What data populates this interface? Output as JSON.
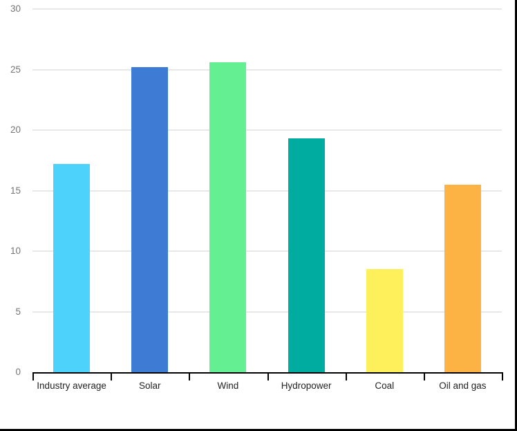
{
  "chart_data": {
    "type": "bar",
    "title": "",
    "categories": [
      "Industry average",
      "Solar",
      "Wind",
      "Hydropower",
      "Coal",
      "Oil and gas"
    ],
    "values": [
      17.2,
      25.2,
      25.6,
      19.3,
      8.5,
      15.5
    ],
    "colors": [
      "#4DD2FC",
      "#3E7BD5",
      "#64EF92",
      "#00ACA0",
      "#FDF05B",
      "#FCB343"
    ],
    "xlabel": "",
    "ylabel": "",
    "ylim": [
      0,
      30
    ],
    "yticks": [
      0,
      5,
      10,
      15,
      20,
      25,
      30
    ],
    "grid": "horizontal",
    "legend": "none",
    "background": "#ffffff",
    "grid_color": "#e8e8e8",
    "axis_color": "#000000",
    "ytick_label_color": "#757575",
    "category_label_color": "#222222"
  }
}
